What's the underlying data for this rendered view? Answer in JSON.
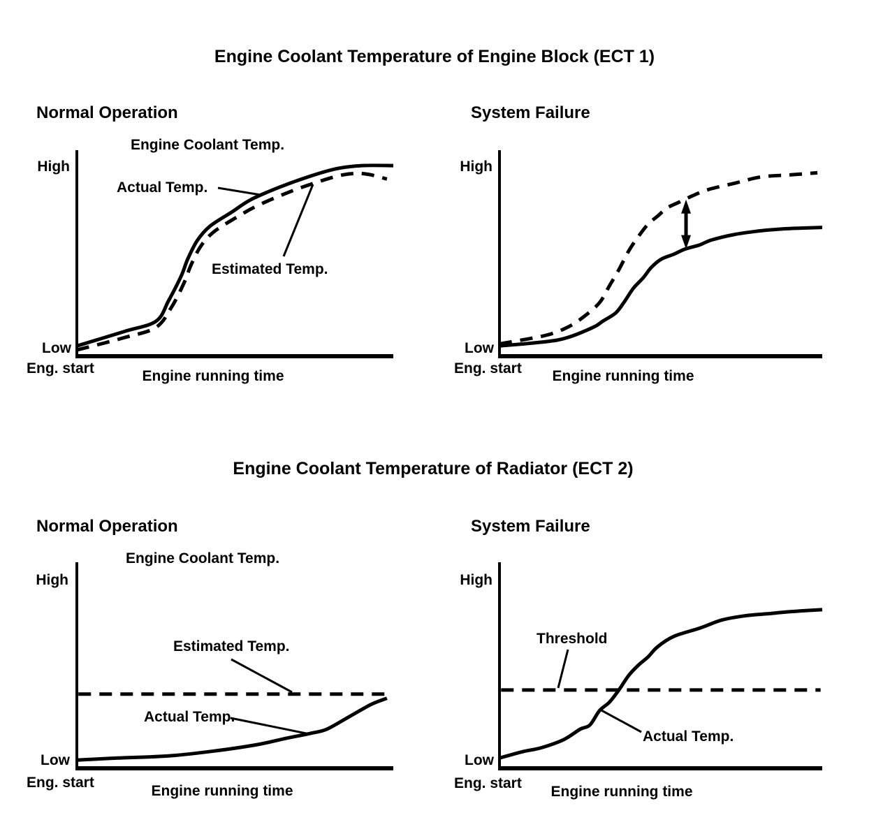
{
  "page": {
    "background": "#ffffff",
    "ink": "#000000"
  },
  "sections": [
    {
      "title": "Engine Coolant Temperature of Engine Block (ECT 1)",
      "panels": [
        {
          "heading": "Normal Operation",
          "chart_title": "Engine Coolant Temp.",
          "y_high": "High",
          "y_low": "Low",
          "origin": "Eng. start",
          "x_label": "Engine running time",
          "annotations": {
            "actual": "Actual Temp.",
            "estimated": "Estimated Temp."
          }
        },
        {
          "heading": "System Failure",
          "y_high": "High",
          "y_low": "Low",
          "origin": "Eng. start",
          "x_label": "Engine running time"
        }
      ]
    },
    {
      "title": "Engine Coolant Temperature of Radiator (ECT 2)",
      "panels": [
        {
          "heading": "Normal Operation",
          "chart_title": "Engine Coolant Temp.",
          "y_high": "High",
          "y_low": "Low",
          "origin": "Eng. start",
          "x_label": "Engine running time",
          "annotations": {
            "estimated": "Estimated Temp.",
            "actual": "Actual Temp."
          }
        },
        {
          "heading": "System Failure",
          "y_high": "High",
          "y_low": "Low",
          "origin": "Eng. start",
          "x_label": "Engine running time",
          "annotations": {
            "threshold": "Threshold",
            "actual": "Actual Temp."
          }
        }
      ]
    }
  ],
  "chart_data": [
    {
      "id": "ect1-normal",
      "type": "line",
      "title": "Engine Coolant Temp.",
      "xlabel": "Engine running time",
      "x_start_label": "Eng. start",
      "y_tick_labels": [
        "Low",
        "High"
      ],
      "xlim": [
        0,
        100
      ],
      "ylim": [
        0,
        100
      ],
      "grid": false,
      "series": [
        {
          "name": "Estimated Temp.",
          "style": "dashed",
          "points": [
            [
              0,
              3
            ],
            [
              15,
              9
            ],
            [
              25,
              14
            ],
            [
              30,
              24
            ],
            [
              34,
              36
            ],
            [
              36,
              44
            ],
            [
              39,
              53
            ],
            [
              43,
              60
            ],
            [
              50,
              67
            ],
            [
              57,
              73
            ],
            [
              66,
              79
            ],
            [
              75,
              84
            ],
            [
              84,
              88
            ],
            [
              91,
              88.5
            ],
            [
              98,
              86
            ]
          ]
        },
        {
          "name": "Actual Temp.",
          "style": "solid",
          "points": [
            [
              0,
              5
            ],
            [
              15,
              12
            ],
            [
              25,
              17
            ],
            [
              29,
              27
            ],
            [
              33,
              39
            ],
            [
              35,
              47
            ],
            [
              38,
              56
            ],
            [
              42,
              63
            ],
            [
              49,
              70
            ],
            [
              55,
              76
            ],
            [
              64,
              82
            ],
            [
              73,
              87
            ],
            [
              82,
              91
            ],
            [
              90,
              92.5
            ],
            [
              100,
              92.5
            ]
          ]
        }
      ]
    },
    {
      "id": "ect1-failure",
      "type": "line",
      "xlabel": "Engine running time",
      "x_start_label": "Eng. start",
      "y_tick_labels": [
        "Low",
        "High"
      ],
      "xlim": [
        0,
        100
      ],
      "ylim": [
        0,
        100
      ],
      "grid": false,
      "series": [
        {
          "name": "Estimated Temp.",
          "style": "dashed",
          "points": [
            [
              0,
              6
            ],
            [
              14,
              10
            ],
            [
              21,
              14
            ],
            [
              26,
              19
            ],
            [
              31,
              26
            ],
            [
              34,
              34
            ],
            [
              37,
              42
            ],
            [
              40,
              51
            ],
            [
              43,
              58
            ],
            [
              46,
              64
            ],
            [
              49,
              68
            ],
            [
              52,
              72
            ],
            [
              56,
              75
            ],
            [
              60,
              78
            ],
            [
              65,
              81
            ],
            [
              73,
              84
            ],
            [
              81,
              87
            ],
            [
              90,
              88
            ],
            [
              98.5,
              89
            ]
          ]
        },
        {
          "name": "Actual Temp.",
          "style": "solid",
          "points": [
            [
              0,
              5
            ],
            [
              14,
              7
            ],
            [
              21,
              9
            ],
            [
              29,
              14
            ],
            [
              32,
              17
            ],
            [
              36,
              21
            ],
            [
              38.5,
              26
            ],
            [
              41.5,
              33
            ],
            [
              44.5,
              38
            ],
            [
              47,
              43
            ],
            [
              50,
              47
            ],
            [
              54,
              49.5
            ],
            [
              57.5,
              52
            ],
            [
              62,
              54
            ],
            [
              65.5,
              56.3
            ],
            [
              72.5,
              59
            ],
            [
              80,
              60.7
            ],
            [
              87,
              61.7
            ],
            [
              94,
              62.2
            ],
            [
              100,
              62.5
            ]
          ]
        }
      ],
      "gap_arrow": {
        "between": [
          "Estimated Temp.",
          "Actual Temp."
        ],
        "x": 57.8,
        "y_from": 52,
        "y_to": 76
      }
    },
    {
      "id": "ect2-normal",
      "type": "line",
      "title": "Engine Coolant Temp.",
      "xlabel": "Engine running time",
      "x_start_label": "Eng. start",
      "y_tick_labels": [
        "Low",
        "High"
      ],
      "xlim": [
        0,
        100
      ],
      "ylim": [
        0,
        100
      ],
      "grid": false,
      "series": [
        {
          "name": "Estimated Temp.",
          "style": "dashed",
          "points": [
            [
              0.5,
              36
            ],
            [
              98.5,
              36
            ]
          ]
        },
        {
          "name": "Actual Temp.",
          "style": "solid",
          "points": [
            [
              0,
              4
            ],
            [
              13,
              5
            ],
            [
              29,
              6
            ],
            [
              44,
              8.5
            ],
            [
              57,
              11.5
            ],
            [
              66,
              14.5
            ],
            [
              74,
              17
            ],
            [
              79,
              19
            ],
            [
              86,
              25
            ],
            [
              93,
              31
            ],
            [
              98,
              34
            ]
          ]
        }
      ]
    },
    {
      "id": "ect2-failure",
      "type": "line",
      "xlabel": "Engine running time",
      "x_start_label": "Eng. start",
      "y_tick_labels": [
        "Low",
        "High"
      ],
      "xlim": [
        0,
        100
      ],
      "ylim": [
        0,
        100
      ],
      "grid": false,
      "series": [
        {
          "name": "Threshold",
          "style": "dashed",
          "points": [
            [
              0.5,
              38
            ],
            [
              99.5,
              38
            ]
          ]
        },
        {
          "name": "Actual Temp.",
          "style": "solid",
          "points": [
            [
              0,
              5
            ],
            [
              7,
              8
            ],
            [
              13,
              10
            ],
            [
              20,
              14
            ],
            [
              25,
              19
            ],
            [
              28,
              21
            ],
            [
              31,
              28
            ],
            [
              34,
              32
            ],
            [
              37,
              38
            ],
            [
              40,
              45
            ],
            [
              43,
              50
            ],
            [
              46,
              54
            ],
            [
              49,
              59
            ],
            [
              54,
              64
            ],
            [
              62,
              68
            ],
            [
              69,
              72
            ],
            [
              76,
              74
            ],
            [
              83,
              75
            ],
            [
              90,
              76
            ],
            [
              100,
              77
            ]
          ]
        }
      ]
    }
  ]
}
